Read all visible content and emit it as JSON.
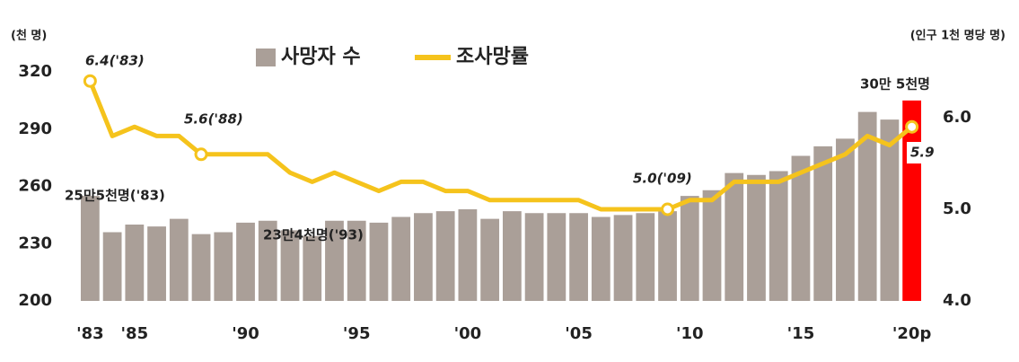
{
  "chart_data": {
    "type": "bar-line",
    "categories": [
      "'83",
      null,
      "'85",
      null,
      null,
      null,
      null,
      "'90",
      null,
      null,
      null,
      null,
      "'95",
      null,
      null,
      null,
      null,
      "'00",
      null,
      null,
      null,
      null,
      "'05",
      null,
      null,
      null,
      null,
      "'10",
      null,
      null,
      null,
      null,
      "'15",
      null,
      null,
      null,
      null,
      "'20p"
    ],
    "series": [
      {
        "name": "사망자 수",
        "type": "bar",
        "color": "#aa9f98",
        "highlight_color": "#ff0000",
        "values": [
          255,
          236,
          240,
          239,
          243,
          235,
          236,
          241,
          242,
          237,
          234,
          242,
          242,
          241,
          244,
          246,
          247,
          248,
          243,
          247,
          246,
          246,
          246,
          244,
          245,
          246,
          247,
          255,
          258,
          267,
          266,
          268,
          276,
          281,
          285,
          299,
          295,
          305
        ]
      },
      {
        "name": "조사망률",
        "type": "line",
        "axis": "y2",
        "color": "#f5c31c",
        "values": [
          6.4,
          5.8,
          5.9,
          5.8,
          5.8,
          5.6,
          5.6,
          5.6,
          5.6,
          5.4,
          5.3,
          5.4,
          5.3,
          5.2,
          5.3,
          5.3,
          5.2,
          5.2,
          5.1,
          5.1,
          5.1,
          5.1,
          5.1,
          5.0,
          5.0,
          5.0,
          5.0,
          5.1,
          5.1,
          5.3,
          5.3,
          5.3,
          5.4,
          5.5,
          5.6,
          5.8,
          5.7,
          5.9
        ]
      }
    ],
    "y_label": "(천 명)",
    "y2_label": "(인구 1천 명당 명)",
    "ylim": [
      200,
      320
    ],
    "yticks": [
      200,
      230,
      260,
      290,
      320
    ],
    "y2lim": [
      4.0,
      6.5
    ],
    "y2ticks": [
      {
        "value": 4.0,
        "label": "4.0"
      },
      {
        "value": 5.0,
        "label": "5.0"
      },
      {
        "value": 6.0,
        "label": "6.0"
      }
    ],
    "annotations": [
      "6.4('83)",
      "5.6('88)",
      "5.0('09)",
      "5.9",
      "25만5천명('83)",
      "23만4천명('93)",
      "30만 5천명"
    ],
    "grid": false
  }
}
